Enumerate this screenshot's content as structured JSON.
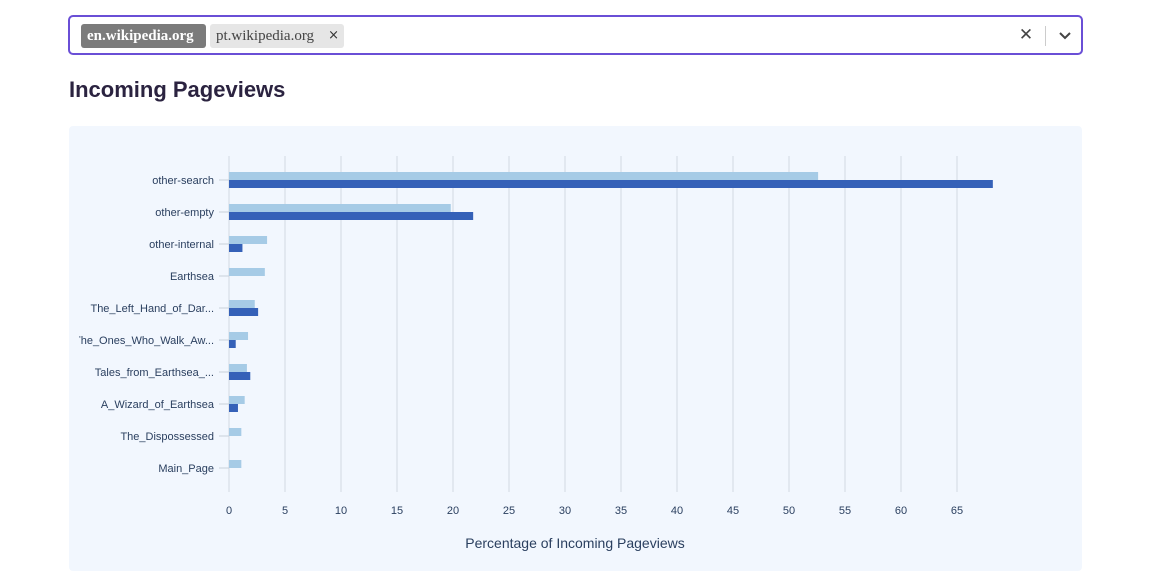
{
  "selector": {
    "selected": [
      {
        "label": "en.wikipedia.org",
        "active": true
      },
      {
        "label": "pt.wikipedia.org",
        "active": false,
        "remove_glyph": "×"
      }
    ],
    "clear_glyph": "✕",
    "clear_icon": "close-icon",
    "dropdown_icon": "chevron-down-icon"
  },
  "section": {
    "title": "Incoming Pageviews"
  },
  "colors": {
    "light_series": "#a6cbe6",
    "dark_series": "#3561b8",
    "accent_border": "#6a4fd6",
    "panel_bg": "#f2f7fe"
  },
  "chart_data": {
    "type": "bar",
    "orientation": "horizontal",
    "categories": [
      "other-search",
      "other-empty",
      "other-internal",
      "Earthsea",
      "The_Left_Hand_of_Dar...",
      "The_Ones_Who_Walk_Aw...",
      "Tales_from_Earthsea_...",
      "A_Wizard_of_Earthsea",
      "The_Dispossessed",
      "Main_Page"
    ],
    "series": [
      {
        "values": [
          52.6,
          19.8,
          3.4,
          3.2,
          2.3,
          1.7,
          1.6,
          1.4,
          1.1,
          1.1
        ],
        "color": "#a6cbe6"
      },
      {
        "values": [
          68.2,
          21.8,
          1.2,
          0,
          2.6,
          0.6,
          1.9,
          0.8,
          0,
          0
        ],
        "color": "#3561b8"
      }
    ],
    "xlabel": "Percentage of Incoming Pageviews",
    "ylabel": "",
    "xlim": [
      0,
      70
    ],
    "xticks": [
      0,
      5,
      10,
      15,
      20,
      25,
      30,
      35,
      40,
      45,
      50,
      55,
      60,
      65
    ],
    "grid": "vertical",
    "legend": "none"
  }
}
